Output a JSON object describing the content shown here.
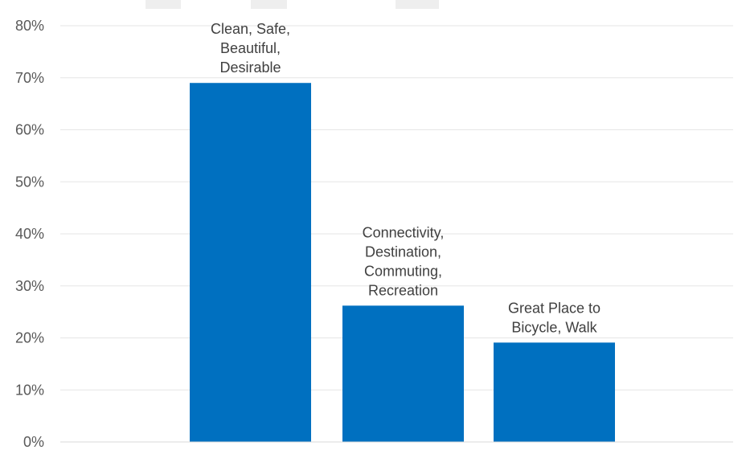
{
  "chart_data": {
    "type": "bar",
    "categories": [
      [
        "Clean, Safe,",
        "Beautiful,",
        "Desirable"
      ],
      [
        "Connectivity,",
        "Destination,",
        "Commuting,",
        "Recreation"
      ],
      [
        "Great Place to",
        "Bicycle, Walk"
      ]
    ],
    "values": [
      69,
      26.2,
      19.1
    ],
    "ylim": [
      0,
      80
    ],
    "ytick_labels": [
      "0%",
      "10%",
      "20%",
      "30%",
      "40%",
      "50%",
      "60%",
      "70%",
      "80%"
    ],
    "ytick_values": [
      0,
      10,
      20,
      30,
      40,
      50,
      60,
      70,
      80
    ],
    "grid": true,
    "bar_color": "#0070c0",
    "legend_placement": "top"
  }
}
